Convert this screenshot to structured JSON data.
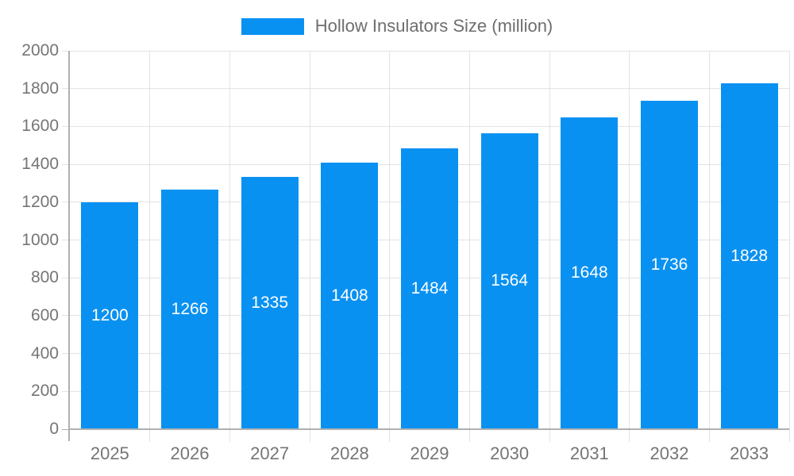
{
  "legend": {
    "label": "Hollow Insulators Size (million)"
  },
  "chart_data": {
    "type": "bar",
    "title": "",
    "xlabel": "",
    "ylabel": "",
    "categories": [
      "2025",
      "2026",
      "2027",
      "2028",
      "2029",
      "2030",
      "2031",
      "2032",
      "2033"
    ],
    "series": [
      {
        "name": "Hollow Insulators Size (million)",
        "values": [
          1200,
          1266,
          1335,
          1408,
          1484,
          1564,
          1648,
          1736,
          1828
        ]
      }
    ],
    "value_labels": [
      "1200",
      "1266",
      "1335",
      "1408",
      "1484",
      "1564",
      "1648",
      "1736",
      "1828"
    ],
    "ylim": [
      0,
      2000
    ],
    "yticks": [
      0,
      200,
      400,
      600,
      800,
      1000,
      1200,
      1400,
      1600,
      1800,
      2000
    ],
    "grid": true,
    "legend_position": "top",
    "colors": {
      "bar": "#0991f2",
      "value_label": "#ffffff",
      "axis_label": "#757575",
      "legend_label": "#6e6e6e",
      "grid_line": "#e3e3e3",
      "axis_line": "#b0b0b0"
    }
  }
}
